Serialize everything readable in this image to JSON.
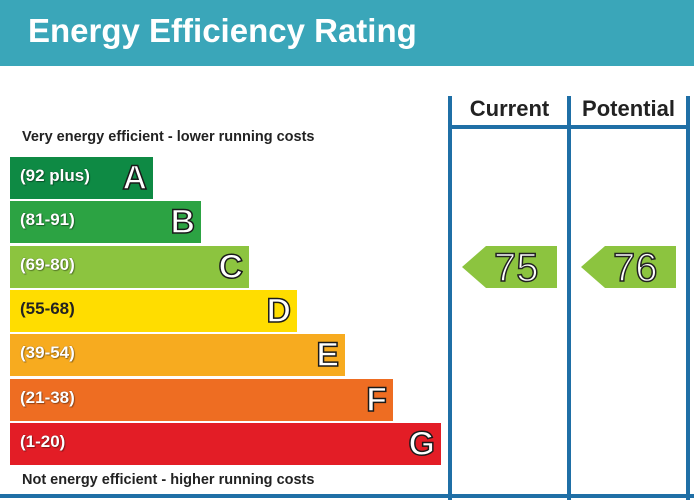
{
  "title": "Energy Efficiency Rating",
  "captions": {
    "top": "Very energy efficient - lower running costs",
    "bottom": "Not energy efficient - higher running costs"
  },
  "columns": {
    "current": "Current",
    "potential": "Potential"
  },
  "chart_data": {
    "type": "bar",
    "bands": [
      {
        "range": "(92 plus)",
        "letter": "A",
        "color": "#0e8a44"
      },
      {
        "range": "(81-91)",
        "letter": "B",
        "color": "#2ca343"
      },
      {
        "range": "(69-80)",
        "letter": "C",
        "color": "#8cc43f"
      },
      {
        "range": "(55-68)",
        "letter": "D",
        "color": "#ffdd00"
      },
      {
        "range": "(39-54)",
        "letter": "E",
        "color": "#f7ab1f"
      },
      {
        "range": "(21-38)",
        "letter": "F",
        "color": "#ee6d22"
      },
      {
        "range": "(1-20)",
        "letter": "G",
        "color": "#e31d26"
      }
    ],
    "current": {
      "value": 75,
      "band": "C",
      "color": "#8cc43f"
    },
    "potential": {
      "value": 76,
      "band": "C",
      "color": "#8cc43f"
    }
  }
}
